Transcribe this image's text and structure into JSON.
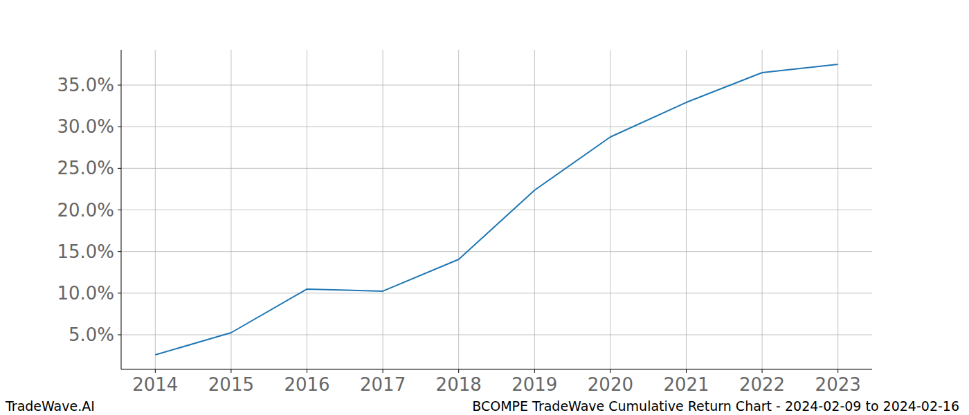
{
  "chart_data": {
    "type": "line",
    "x": [
      2014,
      2015,
      2016,
      2017,
      2018,
      2019,
      2020,
      2021,
      2022,
      2023
    ],
    "values": [
      2.59,
      5.25,
      10.49,
      10.24,
      14.06,
      22.37,
      28.77,
      32.92,
      36.5,
      37.49
    ],
    "color": "#1f77b4",
    "xlim": [
      2013.55,
      2023.45
    ],
    "xticks": [
      2014,
      2015,
      2016,
      2017,
      2018,
      2019,
      2020,
      2021,
      2022,
      2023
    ],
    "ylim": [
      0.845,
      39.24
    ],
    "yticks": [
      {
        "value": 5,
        "label": "5.0%"
      },
      {
        "value": 10,
        "label": "10.0%"
      },
      {
        "value": 15,
        "label": "15.0%"
      },
      {
        "value": 20,
        "label": "20.0%"
      },
      {
        "value": 25,
        "label": "25.0%"
      },
      {
        "value": 30,
        "label": "30.0%"
      },
      {
        "value": 35,
        "label": "35.0%"
      }
    ],
    "grid": true,
    "annotations": [
      "TradeWave.AI",
      "BCOMPE TradeWave Cumulative Return Chart - 2024-02-09 to 2024-02-16"
    ]
  }
}
